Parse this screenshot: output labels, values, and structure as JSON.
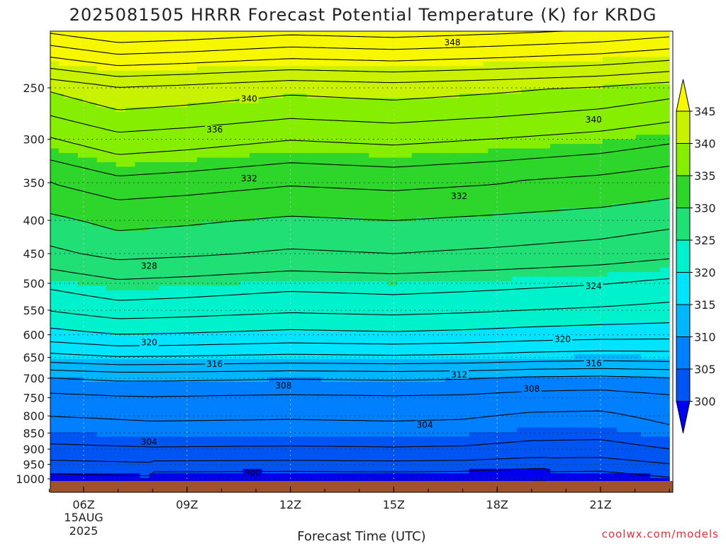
{
  "chart_data": {
    "type": "heatmap",
    "title": "2025081505 HRRR Forecast Potential Temperature (K) for KRDG",
    "xlabel": "Forecast Time (UTC)",
    "ylabel": "",
    "credit": "coolwx.com/models",
    "x_start_label": [
      "06Z",
      "15AUG",
      "2025"
    ],
    "x_ticks": [
      {
        "hour": 6,
        "label": "06Z"
      },
      {
        "hour": 9,
        "label": "09Z"
      },
      {
        "hour": 12,
        "label": "12Z"
      },
      {
        "hour": 15,
        "label": "15Z"
      },
      {
        "hour": 18,
        "label": "18Z"
      },
      {
        "hour": 21,
        "label": "21Z"
      }
    ],
    "xlim": [
      5,
      23
    ],
    "y_axis": "pressure (log scale)",
    "y_ticks": [
      250,
      300,
      350,
      400,
      450,
      500,
      550,
      600,
      650,
      700,
      750,
      800,
      850,
      900,
      950,
      1000
    ],
    "ylim": [
      200,
      1013
    ],
    "grid": true,
    "colorbar": {
      "labels": [
        "345",
        "340",
        "335",
        "330",
        "325",
        "320",
        "315",
        "310",
        "305",
        "300"
      ],
      "bands": [
        {
          "min": 345,
          "max": null,
          "color": "#f7f700"
        },
        {
          "min": 340,
          "max": 345,
          "color": "#c8f200"
        },
        {
          "min": 335,
          "max": 340,
          "color": "#86ee00"
        },
        {
          "min": 330,
          "max": 335,
          "color": "#2ed62b"
        },
        {
          "min": 325,
          "max": 330,
          "color": "#20df74"
        },
        {
          "min": 320,
          "max": 325,
          "color": "#00f2cc"
        },
        {
          "min": 315,
          "max": 320,
          "color": "#00e4ff"
        },
        {
          "min": 310,
          "max": 315,
          "color": "#00b6ff"
        },
        {
          "min": 305,
          "max": 310,
          "color": "#0080ff"
        },
        {
          "min": 300,
          "max": 305,
          "color": "#0055f2"
        },
        {
          "min": null,
          "max": 300,
          "color": "#0000ee"
        }
      ]
    },
    "ground_color": "#a0522d",
    "contour_interval_K": 2,
    "contour_labels": [
      {
        "value": 348,
        "hour": 16.7,
        "p": 213
      },
      {
        "value": 340,
        "hour": 10.8,
        "p": 260
      },
      {
        "value": 340,
        "hour": 20.8,
        "p": 280
      },
      {
        "value": 336,
        "hour": 9.8,
        "p": 290
      },
      {
        "value": 332,
        "hour": 10.8,
        "p": 345
      },
      {
        "value": 332,
        "hour": 16.9,
        "p": 367
      },
      {
        "value": 328,
        "hour": 7.9,
        "p": 470
      },
      {
        "value": 324,
        "hour": 20.8,
        "p": 505
      },
      {
        "value": 320,
        "hour": 7.9,
        "p": 617
      },
      {
        "value": 320,
        "hour": 19.9,
        "p": 610
      },
      {
        "value": 316,
        "hour": 9.8,
        "p": 666
      },
      {
        "value": 316,
        "hour": 20.8,
        "p": 664
      },
      {
        "value": 312,
        "hour": 16.9,
        "p": 691
      },
      {
        "value": 308,
        "hour": 11.8,
        "p": 719
      },
      {
        "value": 308,
        "hour": 19.0,
        "p": 727
      },
      {
        "value": 304,
        "hour": 7.9,
        "p": 878
      },
      {
        "value": 304,
        "hour": 15.9,
        "p": 826
      },
      {
        "value": 300,
        "hour": 10.9,
        "p": 980
      }
    ]
  }
}
